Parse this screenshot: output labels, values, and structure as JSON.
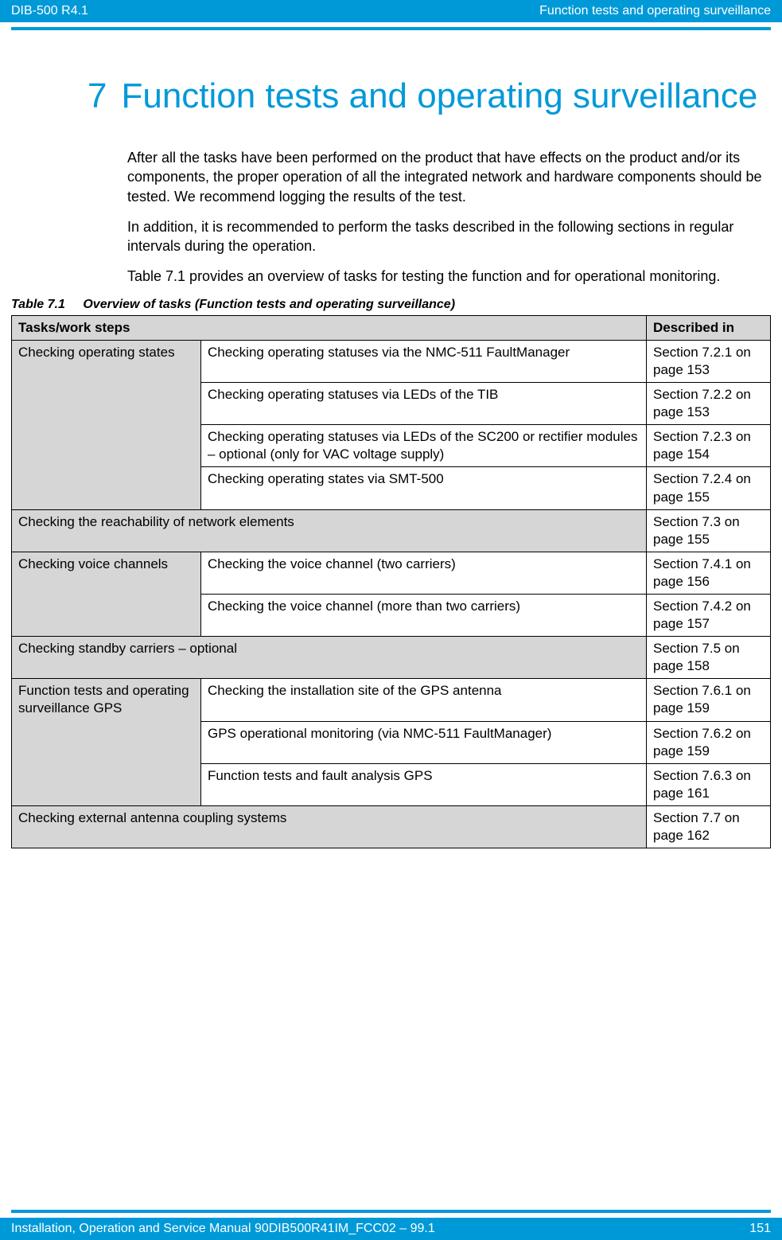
{
  "header": {
    "left": "DIB-500 R4.1",
    "right": "Function tests and operating surveillance"
  },
  "chapter": {
    "number": "7",
    "title": "Function tests and operating surveillance"
  },
  "paragraphs": [
    "After all the tasks have been performed on the product that have effects on the product and/or its components, the proper operation of all the integrated network and hardware components should be tested. We recommend logging the results of the test.",
    "In addition, it is recommended to perform the tasks described in the following sections in regular intervals during the operation.",
    "Table 7.1 provides an overview of tasks for testing the function and for operational monitoring."
  ],
  "table": {
    "caption_label": "Table 7.1",
    "caption_text": "Overview of tasks (Function tests and operating surveillance)",
    "head": {
      "tasks": "Tasks/work steps",
      "described": "Described in"
    },
    "rows": [
      {
        "group": "Checking operating states",
        "group_rows": 4,
        "mid": "Checking operating statuses via the NMC-511 FaultManager",
        "ref": "Section 7.2.1 on page 153"
      },
      {
        "mid": "Checking operating statuses via LEDs of the TIB",
        "ref": "Section 7.2.2 on page 153"
      },
      {
        "mid": "Checking operating statuses via LEDs of the SC200 or rectifier modules – optional (only for VAC voltage supply)",
        "ref": "Section 7.2.3 on page 154"
      },
      {
        "mid": "Checking operating states via SMT-500",
        "ref": "Section 7.2.4 on page 155"
      },
      {
        "full": "Checking the reachability of network elements",
        "ref": "Section 7.3 on page 155"
      },
      {
        "group": "Checking voice channels",
        "group_rows": 2,
        "mid": "Checking the voice channel (two carriers)",
        "ref": "Section 7.4.1 on page 156"
      },
      {
        "mid": "Checking the voice channel (more than two carriers)",
        "ref": "Section 7.4.2 on page 157"
      },
      {
        "full": "Checking standby carriers – optional",
        "ref": "Section 7.5 on page 158"
      },
      {
        "group": "Function tests and operating surveillance GPS",
        "group_rows": 3,
        "mid": "Checking the installation site of the GPS antenna",
        "ref": "Section 7.6.1 on page 159"
      },
      {
        "mid": "GPS operational monitoring (via NMC-511 FaultManager)",
        "ref": "Section 7.6.2 on page 159"
      },
      {
        "mid": "Function tests and fault analysis GPS",
        "ref": "Section 7.6.3 on page 161"
      },
      {
        "full": "Checking external antenna coupling systems",
        "ref": "Section 7.7 on page 162"
      }
    ]
  },
  "footer": {
    "left": "Installation, Operation and Service Manual 90DIB500R41IM_FCC02  –  99.1",
    "page": "151"
  }
}
